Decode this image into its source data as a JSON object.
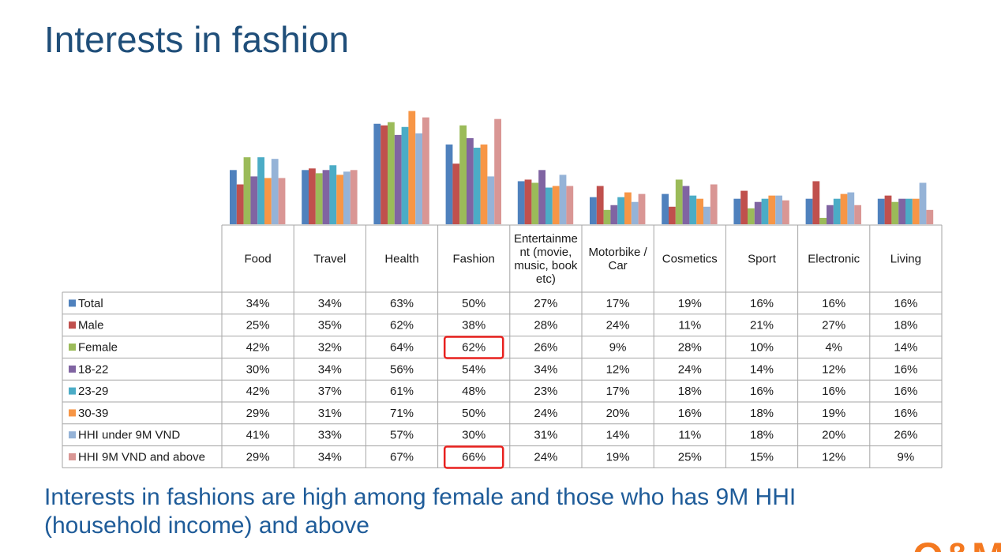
{
  "slide": {
    "title": "Interests in fashion",
    "caption_line1": "Interests in fashions are high among female and those who has 9M HHI",
    "caption_line2": "(household income) and above",
    "logo_text": "Q&M"
  },
  "colors": {
    "title": "#1f4e79",
    "caption": "#1f5c99",
    "highlight_box": "#e8211e",
    "grid": "#a6a6a6"
  },
  "chart_data": {
    "type": "bar",
    "categories": [
      [
        "Food"
      ],
      [
        "Travel"
      ],
      [
        "Health"
      ],
      [
        "Fashion"
      ],
      [
        "Entertainme",
        "nt (movie,",
        "music, book",
        "etc)"
      ],
      [
        "Motorbike /",
        "Car"
      ],
      [
        "Cosmetics"
      ],
      [
        "Sport"
      ],
      [
        "Electronic"
      ],
      [
        "Living"
      ]
    ],
    "series": [
      {
        "name": "Total",
        "color": "#4f81bd",
        "values": [
          34,
          34,
          63,
          50,
          27,
          17,
          19,
          16,
          16,
          16
        ]
      },
      {
        "name": "Male",
        "color": "#c0504d",
        "values": [
          25,
          35,
          62,
          38,
          28,
          24,
          11,
          21,
          27,
          18
        ]
      },
      {
        "name": "Female",
        "color": "#9bbb59",
        "values": [
          42,
          32,
          64,
          62,
          26,
          9,
          28,
          10,
          4,
          14
        ]
      },
      {
        "name": "18-22",
        "color": "#8064a2",
        "values": [
          30,
          34,
          56,
          54,
          34,
          12,
          24,
          14,
          12,
          16
        ]
      },
      {
        "name": "23-29",
        "color": "#4bacc6",
        "values": [
          42,
          37,
          61,
          48,
          23,
          17,
          18,
          16,
          16,
          16
        ]
      },
      {
        "name": "30-39",
        "color": "#f79646",
        "values": [
          29,
          31,
          71,
          50,
          24,
          20,
          16,
          18,
          19,
          16
        ]
      },
      {
        "name": "HHI under 9M VND",
        "color": "#95b3d7",
        "values": [
          41,
          33,
          57,
          30,
          31,
          14,
          11,
          18,
          20,
          26
        ]
      },
      {
        "name": "HHI 9M VND and above",
        "color": "#d99694",
        "values": [
          29,
          34,
          67,
          66,
          24,
          19,
          25,
          15,
          12,
          9
        ]
      }
    ],
    "value_suffix": "%",
    "ylim": [
      0,
      75
    ],
    "legend": "data-table",
    "highlighted_cells": [
      {
        "series": "Female",
        "category": "Fashion",
        "value": 62
      },
      {
        "series": "HHI 9M VND and above",
        "category": "Fashion",
        "value": 66
      }
    ]
  }
}
